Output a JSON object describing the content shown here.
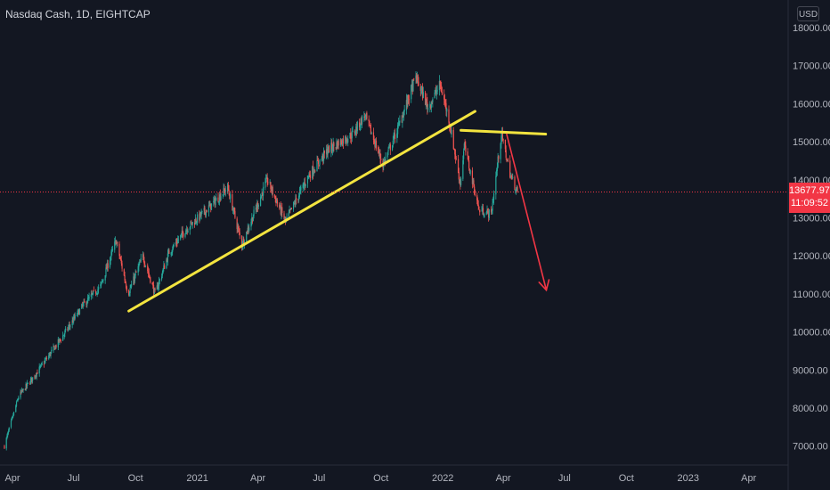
{
  "header": {
    "symbol_title": "Nasdaq Cash, 1D, EIGHTCAP",
    "currency": "USD"
  },
  "price_tag": {
    "price": "13677.97",
    "countdown": "11:09:52",
    "color": "#f23645"
  },
  "colors": {
    "background": "#131722",
    "up": "#26a69a",
    "down": "#ef5350",
    "trendline": "#f3e43f",
    "arrow": "#f23645",
    "grid": "#1e222d"
  },
  "chart_data": {
    "type": "candlestick",
    "symbol": "Nasdaq Cash",
    "interval": "1D",
    "exchange": "EIGHTCAP",
    "y_ticks": [
      "18000.00",
      "17000.00",
      "16000.00",
      "15000.00",
      "14000.00",
      "13000.00",
      "12000.00",
      "11000.00",
      "10000.00",
      "9000.00",
      "8000.00",
      "7000.00"
    ],
    "x_ticks": [
      "Apr",
      "Jul",
      "Oct",
      "2021",
      "Apr",
      "Jul",
      "Oct",
      "2022",
      "Apr",
      "Jul",
      "Oct",
      "2023",
      "Apr"
    ],
    "ylim": [
      6800,
      18400
    ],
    "price_path": [
      [
        "2020-03-20",
        7000
      ],
      [
        "2020-04-10",
        8300
      ],
      [
        "2020-05-10",
        9000
      ],
      [
        "2020-06-15",
        9900
      ],
      [
        "2020-07-15",
        10700
      ],
      [
        "2020-08-10",
        11200
      ],
      [
        "2020-09-02",
        12400
      ],
      [
        "2020-09-20",
        11000
      ],
      [
        "2020-10-12",
        12000
      ],
      [
        "2020-10-30",
        11000
      ],
      [
        "2020-11-20",
        12100
      ],
      [
        "2020-12-15",
        12700
      ],
      [
        "2021-01-20",
        13300
      ],
      [
        "2021-02-15",
        13800
      ],
      [
        "2021-03-08",
        12300
      ],
      [
        "2021-04-15",
        14000
      ],
      [
        "2021-05-12",
        12900
      ],
      [
        "2021-06-15",
        14100
      ],
      [
        "2021-07-15",
        14800
      ],
      [
        "2021-08-20",
        15200
      ],
      [
        "2021-09-07",
        15700
      ],
      [
        "2021-10-04",
        14400
      ],
      [
        "2021-10-25",
        15300
      ],
      [
        "2021-11-22",
        16700
      ],
      [
        "2021-12-10",
        15900
      ],
      [
        "2021-12-28",
        16500
      ],
      [
        "2022-01-10",
        15600
      ],
      [
        "2022-01-27",
        13900
      ],
      [
        "2022-02-02",
        14900
      ],
      [
        "2022-02-24",
        13200
      ],
      [
        "2022-03-14",
        13100
      ],
      [
        "2022-03-29",
        15200
      ],
      [
        "2022-04-12",
        14100
      ],
      [
        "2022-04-22",
        13678
      ]
    ],
    "last_price": 13677.97,
    "annotations": {
      "ascending_trendline": {
        "from": [
          "2020-09-21",
          10550
        ],
        "to": [
          "2022-02-18",
          15800
        ]
      },
      "horizontal_resistance": {
        "from": [
          "2022-01-28",
          15300
        ],
        "to": [
          "2022-06-03",
          15200
        ]
      },
      "projection_arrow": {
        "from": [
          "2022-04-06",
          15200
        ],
        "to": [
          "2022-06-04",
          11100
        ]
      }
    },
    "grid": false,
    "legend": "none"
  }
}
